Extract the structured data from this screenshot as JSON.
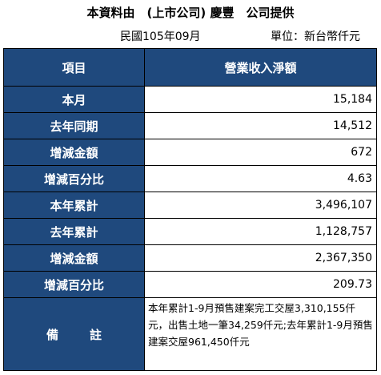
{
  "header": {
    "title": "本資料由　(上市公司) 慶豐　公司提供",
    "period": "民國105年09月",
    "unit": "單位：新台幣仟元"
  },
  "table": {
    "col_item": "項目",
    "col_value": "營業收入淨額",
    "rows": [
      {
        "label": "本月",
        "value": "15,184"
      },
      {
        "label": "去年同期",
        "value": "14,512"
      },
      {
        "label": "增減金額",
        "value": "672"
      },
      {
        "label": "增減百分比",
        "value": "4.63"
      },
      {
        "label": "本年累計",
        "value": "3,496,107"
      },
      {
        "label": "去年累計",
        "value": "1,128,757"
      },
      {
        "label": "增減金額",
        "value": "2,367,350"
      },
      {
        "label": "增減百分比",
        "value": "209.73"
      }
    ],
    "note_label": "備　註",
    "note_text": "本年累計1-9月預售建案完工交屋3,310,155仟元，出售土地一筆34,259仟元;去年累計1-9月預售建案交屋961,450仟元"
  },
  "colors": {
    "header_bg": "#1f497d",
    "header_text": "#ffffff"
  }
}
